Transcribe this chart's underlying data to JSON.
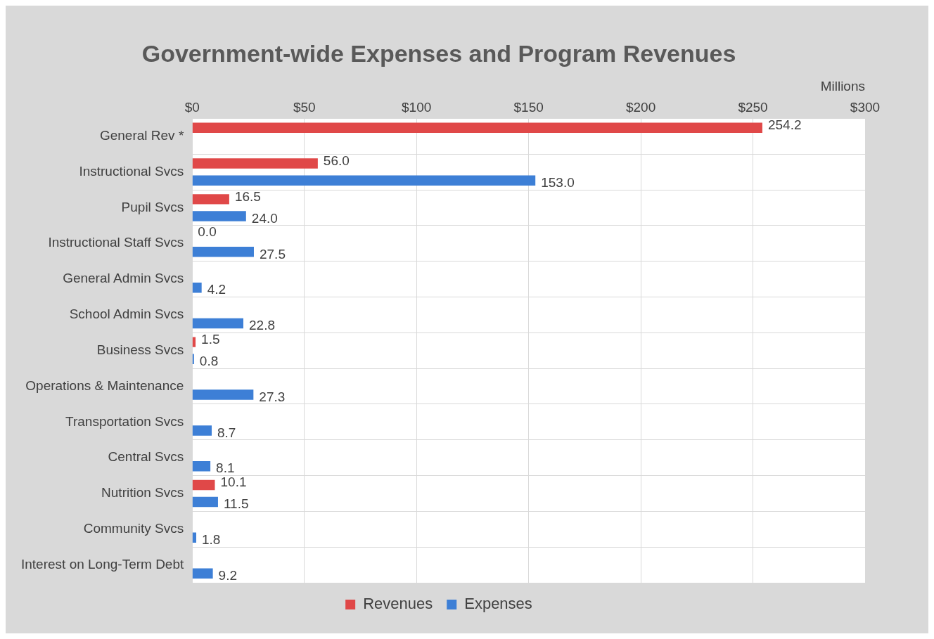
{
  "chart_data": {
    "type": "bar",
    "orientation": "horizontal",
    "title": "Government-wide Expenses and Program Revenues",
    "xlabel": "Millions",
    "categories": [
      "General Rev *",
      "Instructional Svcs",
      "Pupil Svcs",
      "Instructional Staff Svcs",
      "General Admin Svcs",
      "School Admin Svcs",
      "Business Svcs",
      "Operations & Maintenance",
      "Transportation Svcs",
      "Central Svcs",
      "Nutrition Svcs",
      "Community Svcs",
      "Interest on Long-Term Debt"
    ],
    "series": [
      {
        "name": "Revenues",
        "color": "#e04848",
        "values": [
          254.2,
          56.0,
          16.5,
          0.0,
          null,
          null,
          1.5,
          null,
          null,
          null,
          10.1,
          null,
          null
        ],
        "value_labels": [
          "254.2",
          "56.0",
          "16.5",
          "0.0",
          null,
          null,
          "1.5",
          null,
          null,
          null,
          "10.1",
          null,
          null
        ]
      },
      {
        "name": "Expenses",
        "color": "#3d7fd6",
        "values": [
          null,
          153.0,
          24.0,
          27.5,
          4.2,
          22.8,
          0.8,
          27.3,
          8.7,
          8.1,
          11.5,
          1.8,
          9.2
        ],
        "value_labels": [
          null,
          "153.0",
          "24.0",
          "27.5",
          "4.2",
          "22.8",
          "0.8",
          "27.3",
          "8.7",
          "8.1",
          "11.5",
          "1.8",
          "9.2"
        ]
      }
    ],
    "xlim": [
      0,
      300
    ],
    "xticks": [
      {
        "value": 0,
        "label": "$0"
      },
      {
        "value": 50,
        "label": "$50"
      },
      {
        "value": 100,
        "label": "$100"
      },
      {
        "value": 150,
        "label": "$150"
      },
      {
        "value": 200,
        "label": "$200"
      },
      {
        "value": 250,
        "label": "$250"
      },
      {
        "value": 300,
        "label": "$300"
      }
    ],
    "grid": true,
    "legend": "bottom"
  }
}
